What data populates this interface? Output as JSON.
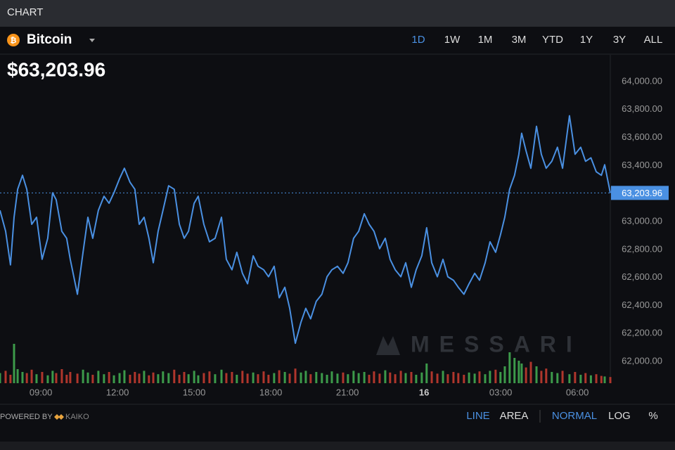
{
  "ui": {
    "panel_title": "CHART",
    "ranges": [
      "1D",
      "1W",
      "1M",
      "3M",
      "YTD",
      "1Y",
      "3Y",
      "ALL"
    ],
    "active_range": 0,
    "price": "$63,203.96",
    "watermark": "MESSARI",
    "powered_by": "POWERED BY",
    "provider": "KAIKO",
    "styles": [
      "LINE",
      "AREA"
    ],
    "active_style": 0,
    "scales": [
      "NORMAL",
      "LOG",
      "%"
    ],
    "active_scale": 0
  },
  "chart_data": {
    "type": "line",
    "x": [
      7.4,
      7.62,
      7.81,
      7.95,
      8.09,
      8.28,
      8.45,
      8.64,
      8.83,
      9.05,
      9.27,
      9.46,
      9.6,
      9.82,
      10.01,
      10.15,
      10.43,
      10.65,
      10.84,
      11.03,
      11.25,
      11.47,
      11.67,
      11.86,
      12.08,
      12.27,
      12.49,
      12.68,
      12.85,
      13.04,
      13.23,
      13.4,
      13.59,
      13.78,
      14.0,
      14.22,
      14.42,
      14.61,
      14.78,
      15.0,
      15.16,
      15.38,
      15.6,
      15.82,
      16.07,
      16.26,
      16.48,
      16.67,
      16.89,
      17.09,
      17.31,
      17.5,
      17.72,
      17.91,
      18.13,
      18.33,
      18.55,
      18.74,
      18.96,
      19.18,
      19.37,
      19.56,
      19.78,
      20.0,
      20.2,
      20.39,
      20.61,
      20.83,
      21.02,
      21.24,
      21.44,
      21.66,
      21.85,
      22.04,
      22.26,
      22.48,
      22.67,
      22.87,
      23.09,
      23.28,
      23.5,
      23.69,
      23.91,
      24.1,
      24.3,
      24.52,
      24.74,
      24.93,
      25.15,
      25.34,
      25.56,
      25.76,
      25.98,
      26.17,
      26.39,
      26.58,
      26.8,
      26.99,
      27.16,
      27.35,
      27.54,
      27.71,
      27.82,
      27.99,
      28.18,
      28.4,
      28.59,
      28.78,
      29.0,
      29.22,
      29.42,
      29.69,
      29.91,
      30.13,
      30.32,
      30.53,
      30.74,
      30.94,
      31.07,
      31.29
    ],
    "series": [
      {
        "name": "Bitcoin",
        "color": "#4a90e2",
        "values": [
          63080,
          62930,
          62690,
          63030,
          63230,
          63330,
          63230,
          62980,
          63030,
          62730,
          62880,
          63205,
          63155,
          62930,
          62880,
          62730,
          62480,
          62780,
          63030,
          62880,
          63080,
          63180,
          63130,
          63205,
          63305,
          63380,
          63280,
          63230,
          62980,
          63030,
          62880,
          62705,
          62930,
          63080,
          63255,
          63230,
          62980,
          62880,
          62930,
          63130,
          63180,
          62980,
          62855,
          62880,
          63030,
          62730,
          62655,
          62780,
          62630,
          62555,
          62755,
          62680,
          62655,
          62605,
          62680,
          62455,
          62530,
          62380,
          62130,
          62280,
          62380,
          62305,
          62430,
          62480,
          62605,
          62655,
          62680,
          62630,
          62705,
          62880,
          62930,
          63055,
          62980,
          62930,
          62805,
          62880,
          62730,
          62655,
          62605,
          62705,
          62530,
          62655,
          62755,
          62955,
          62705,
          62605,
          62730,
          62605,
          62580,
          62530,
          62480,
          62555,
          62630,
          62580,
          62705,
          62855,
          62780,
          62905,
          63030,
          63230,
          63330,
          63480,
          63630,
          63505,
          63380,
          63680,
          63480,
          63380,
          63430,
          63530,
          63380,
          63755,
          63480,
          63530,
          63430,
          63455,
          63355,
          63330,
          63405,
          63203.96
        ]
      },
      {
        "axis": "y2",
        "values": [
          18,
          22,
          15,
          70,
          25,
          20,
          18,
          24,
          16,
          20,
          14,
          22,
          18,
          25,
          15,
          20,
          17,
          24,
          19,
          15,
          22,
          16,
          20,
          14,
          18,
          23,
          15,
          20,
          17,
          22,
          14,
          19,
          16,
          21,
          18,
          24,
          15,
          20,
          16,
          22,
          14,
          18,
          21,
          16,
          24,
          18,
          20,
          15,
          22,
          17,
          19,
          16,
          21,
          15,
          18,
          23,
          20,
          17,
          26,
          19,
          22,
          16,
          20,
          18,
          15,
          21,
          17,
          19,
          16,
          22,
          18,
          20,
          15,
          21,
          17,
          23,
          19,
          16,
          22,
          18,
          20,
          15,
          19,
          35,
          21,
          17,
          22,
          16,
          20,
          18,
          15,
          19,
          17,
          21,
          16,
          22,
          24,
          20,
          30,
          55,
          45,
          40,
          35,
          28,
          38,
          30,
          22,
          26,
          20,
          18,
          22,
          16,
          20,
          15,
          18,
          14,
          16,
          13,
          12,
          11
        ]
      }
    ],
    "up_color": "#3c9a4a",
    "down_color": "#b0362c",
    "xlim": [
      7.4,
      31.29
    ],
    "xticks": [
      {
        "value": 9,
        "label": "09:00"
      },
      {
        "value": 12,
        "label": "12:00"
      },
      {
        "value": 15,
        "label": "15:00"
      },
      {
        "value": 18,
        "label": "18:00"
      },
      {
        "value": 21,
        "label": "21:00"
      },
      {
        "value": 24,
        "label": "16"
      },
      {
        "value": 27,
        "label": "03:00"
      },
      {
        "value": 30,
        "label": "06:00"
      }
    ],
    "ylim": [
      61845,
      64190
    ],
    "yticks": [
      {
        "value": 62000,
        "label": "62,000.00"
      },
      {
        "value": 62200,
        "label": "62,200.00"
      },
      {
        "value": 62400,
        "label": "62,400.00"
      },
      {
        "value": 62600,
        "label": "62,600.00"
      },
      {
        "value": 62800,
        "label": "62,800.00"
      },
      {
        "value": 63000,
        "label": "63,000.00"
      },
      {
        "value": 63200,
        "label": "63,200.00"
      },
      {
        "value": 63400,
        "label": "63,400.00"
      },
      {
        "value": 63600,
        "label": "63,600.00"
      },
      {
        "value": 63800,
        "label": "63,800.00"
      },
      {
        "value": 64000,
        "label": "64,000.00"
      }
    ],
    "y2lim": [
      0,
      100
    ],
    "last_price": {
      "value": 63203.96,
      "label": "63,203.96"
    }
  }
}
